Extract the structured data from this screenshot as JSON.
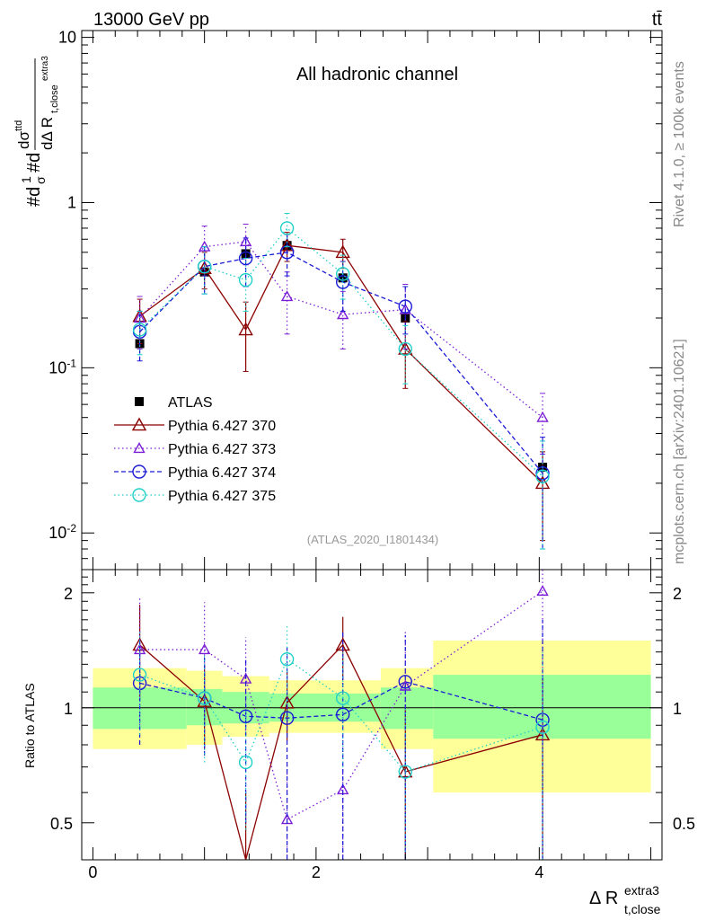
{
  "header": {
    "left": "13000 GeV pp",
    "right": "tt̄"
  },
  "main": {
    "title": "All hadronic channel",
    "ylabel": "#d1σ#dd σttdΔ R t,close extra3",
    "ylim": [
      0.006,
      11
    ],
    "yticks": [
      {
        "v": 10,
        "label": "10"
      },
      {
        "v": 1,
        "label": "1"
      },
      {
        "v": 0.1,
        "label": "10^-1"
      },
      {
        "v": 0.01,
        "label": "10^-2"
      }
    ],
    "analysis_tag": "(ATLAS_2020_I1801434)"
  },
  "ratio": {
    "ylabel": "Ratio to ATLAS",
    "ylim": [
      0.4,
      2.3
    ],
    "yticks": [
      {
        "v": 0.5,
        "label": "0.5"
      },
      {
        "v": 1,
        "label": "1"
      },
      {
        "v": 2,
        "label": "2"
      }
    ]
  },
  "xaxis": {
    "label": "Δ R",
    "label_sup": "extra3",
    "label_sub": "t,close",
    "xlim": [
      -0.1,
      5.1
    ],
    "ticks": [
      {
        "v": 0,
        "label": "0"
      },
      {
        "v": 2,
        "label": "2"
      },
      {
        "v": 4,
        "label": "4"
      }
    ]
  },
  "side_text": {
    "rivet": "Rivet 4.1.0, ≥ 100k events",
    "mcplots": "mcplots.cern.ch [arXiv:2401.10621]"
  },
  "chart_data": {
    "type": "line",
    "title": "All hadronic channel",
    "xlabel": "Δ R t,close extra3",
    "ylabel": "1/σ dσ/dΔR",
    "x": [
      0.42,
      1.0,
      1.37,
      1.74,
      2.24,
      2.8,
      4.03
    ],
    "bin_edges": [
      0,
      0.84,
      1.16,
      1.58,
      1.9,
      2.58,
      3.05,
      5.0
    ],
    "band_yellow": [
      [
        0.78,
        1.27
      ],
      [
        0.8,
        1.25
      ],
      [
        0.84,
        1.21
      ],
      [
        0.86,
        1.18
      ],
      [
        0.86,
        1.18
      ],
      [
        0.78,
        1.27
      ],
      [
        0.6,
        1.5
      ]
    ],
    "band_green": [
      [
        0.88,
        1.13
      ],
      [
        0.9,
        1.12
      ],
      [
        0.91,
        1.1
      ],
      [
        0.92,
        1.09
      ],
      [
        0.92,
        1.09
      ],
      [
        0.88,
        1.13
      ],
      [
        0.83,
        1.22
      ]
    ],
    "series": [
      {
        "name": "ATLAS",
        "color": "#000000",
        "marker": "square",
        "dash": "",
        "values": [
          0.14,
          0.38,
          0.49,
          0.55,
          0.35,
          0.2,
          0.025
        ],
        "ratio": null
      },
      {
        "name": "Pythia 6.427 370",
        "color": "#8b0000",
        "marker": "triangle-open",
        "dash": "",
        "values": [
          0.205,
          0.4,
          0.17,
          0.55,
          0.5,
          0.13,
          0.02
        ],
        "err": [
          [
            0.14,
            0.26
          ],
          [
            0.3,
            0.5
          ],
          [
            0.095,
            0.25
          ],
          [
            0.44,
            0.66
          ],
          [
            0.4,
            0.6
          ],
          [
            0.075,
            0.19
          ],
          [
            0.009,
            0.031
          ]
        ],
        "ratio": [
          1.46,
          1.04,
          0.35,
          1.03,
          1.46,
          0.68,
          0.85
        ],
        "ratio_err": [
          [
            1.05,
            1.86
          ],
          [
            0.78,
            1.3
          ],
          [
            0.0,
            0.6
          ],
          [
            0.82,
            1.25
          ],
          [
            1.18,
            1.73
          ],
          [
            0.0,
            1.0
          ],
          [
            0.0,
            1.2
          ]
        ]
      },
      {
        "name": "Pythia 6.427 373",
        "color": "#7b1fd6",
        "marker": "triangle-open",
        "dash": "1.5 3",
        "values": [
          0.2,
          0.54,
          0.58,
          0.27,
          0.21,
          0.225,
          0.05
        ],
        "err": [
          [
            0.13,
            0.27
          ],
          [
            0.36,
            0.72
          ],
          [
            0.42,
            0.74
          ],
          [
            0.16,
            0.38
          ],
          [
            0.13,
            0.29
          ],
          [
            0.13,
            0.32
          ],
          [
            0.03,
            0.07
          ]
        ],
        "ratio": [
          1.42,
          1.42,
          1.19,
          0.51,
          0.61,
          1.14,
          2.02
        ],
        "ratio_err": [
          [
            0.9,
            1.95
          ],
          [
            0.95,
            1.89
          ],
          [
            0.85,
            1.53
          ],
          [
            0.3,
            0.72
          ],
          [
            0.3,
            0.95
          ],
          [
            0.0,
            1.6
          ],
          [
            0.8,
            3.0
          ]
        ]
      },
      {
        "name": "Pythia 6.427 374",
        "color": "#1a1ad6",
        "marker": "circle-open",
        "dash": "5 3",
        "values": [
          0.165,
          0.41,
          0.46,
          0.5,
          0.33,
          0.235,
          0.023
        ],
        "err": [
          [
            0.11,
            0.22
          ],
          [
            0.28,
            0.54
          ],
          [
            0.31,
            0.61
          ],
          [
            0.36,
            0.64
          ],
          [
            0.22,
            0.44
          ],
          [
            0.16,
            0.31
          ],
          [
            0.008,
            0.038
          ]
        ],
        "ratio": [
          1.16,
          1.06,
          0.95,
          0.94,
          0.96,
          1.17,
          0.93
        ],
        "ratio_err": [
          [
            0.8,
            1.52
          ],
          [
            0.75,
            1.36
          ],
          [
            0.5,
            1.35
          ],
          [
            0.4,
            1.45
          ],
          [
            0.3,
            1.6
          ],
          [
            0.0,
            1.55
          ],
          [
            0.0,
            1.7
          ]
        ]
      },
      {
        "name": "Pythia 6.427 375",
        "color": "#20d0c8",
        "marker": "circle-open",
        "dash": "1.5 3",
        "values": [
          0.17,
          0.41,
          0.34,
          0.7,
          0.37,
          0.13,
          0.022
        ],
        "err": [
          [
            0.12,
            0.22
          ],
          [
            0.28,
            0.54
          ],
          [
            0.22,
            0.46
          ],
          [
            0.54,
            0.86
          ],
          [
            0.26,
            0.48
          ],
          [
            0.08,
            0.18
          ],
          [
            0.008,
            0.036
          ]
        ],
        "ratio": [
          1.22,
          1.06,
          0.72,
          1.34,
          1.06,
          0.68,
          0.89
        ],
        "ratio_err": [
          [
            0.85,
            1.58
          ],
          [
            0.72,
            1.38
          ],
          [
            0.48,
            0.98
          ],
          [
            1.02,
            1.66
          ],
          [
            0.7,
            1.42
          ],
          [
            0.0,
            1.0
          ],
          [
            0.0,
            1.4
          ]
        ]
      }
    ]
  }
}
